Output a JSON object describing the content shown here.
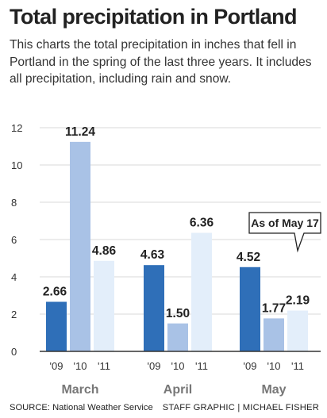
{
  "header": {
    "title": "Total precipitation in Portland",
    "subtitle": "This charts the total precipitation in inches that fell in Portland in the spring of the last three years. It includes all precipitation, including rain and snow."
  },
  "footer": {
    "source": "SOURCE: National Weather Service",
    "credit": "STAFF GRAPHIC | MICHAEL FISHER"
  },
  "colors": {
    "2009": "#2f6fb8",
    "2010": "#a9c2e6",
    "2011": "#e3eefa",
    "grid": "#d9d9d9",
    "axis": "#333333"
  },
  "chart_data": {
    "type": "bar",
    "categories": [
      "March",
      "April",
      "May"
    ],
    "series_labels": [
      "'09",
      "'10",
      "'11"
    ],
    "values": [
      [
        2.66,
        11.24,
        4.86
      ],
      [
        4.63,
        1.5,
        6.36
      ],
      [
        4.52,
        1.77,
        2.19
      ]
    ],
    "value_labels": [
      [
        "2.66",
        "11.24",
        "4.86"
      ],
      [
        "4.63",
        "1.50",
        "6.36"
      ],
      [
        "4.52",
        "1.77",
        "2.19"
      ]
    ],
    "ylim": [
      0,
      12
    ],
    "yticks": [
      "0",
      "2",
      "4",
      "6",
      "8",
      "10",
      "12"
    ],
    "grid": true,
    "annotation": {
      "text": "As of May 17",
      "category": "May",
      "series_index": 2
    }
  }
}
